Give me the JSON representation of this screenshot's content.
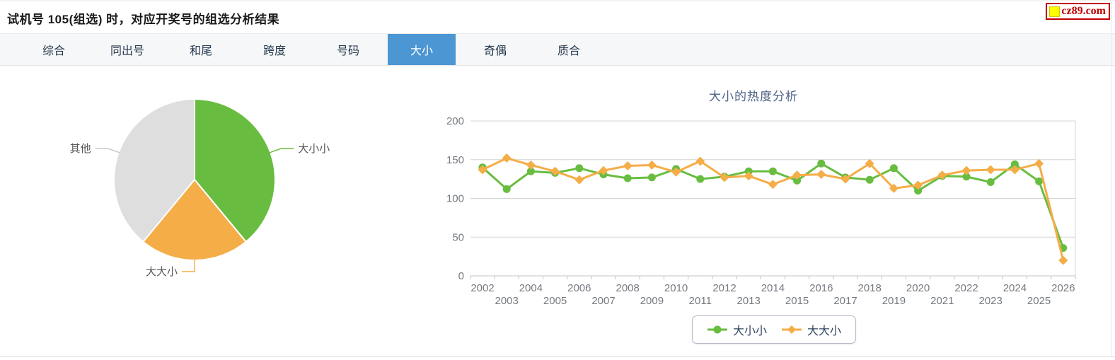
{
  "page": {
    "title": "试机号 105(组选) 时，对应开奖号的组选分析结果",
    "logo_text": "cz89.com"
  },
  "tabs": {
    "items": [
      {
        "id": "zonghe",
        "label": "综合",
        "active": false
      },
      {
        "id": "tongchuhao",
        "label": "同出号",
        "active": false
      },
      {
        "id": "hewei",
        "label": "和尾",
        "active": false
      },
      {
        "id": "kuadu",
        "label": "跨度",
        "active": false
      },
      {
        "id": "haoma",
        "label": "号码",
        "active": false
      },
      {
        "id": "daxiao",
        "label": "大小",
        "active": true
      },
      {
        "id": "qiou",
        "label": "奇偶",
        "active": false
      },
      {
        "id": "zhihe",
        "label": "质合",
        "active": false
      }
    ]
  },
  "colors": {
    "series_green": "#68bd40",
    "series_orange": "#f5ad48",
    "pie_gray": "#dedede",
    "active_tab_bg": "#4c96d3",
    "grid_line": "#d4d4d4",
    "axis_line": "#c0c0c0",
    "axis_text": "#757a80",
    "logo_red": "#c00000",
    "logo_yellow": "#ffff00"
  },
  "chart_data": [
    {
      "type": "pie",
      "start_angle": "top",
      "direction": "clockwise",
      "slices": [
        {
          "label": "大小小",
          "percent": 39,
          "color": "#68bd40",
          "leader_color": "#68bd40"
        },
        {
          "label": "大大小",
          "percent": 22,
          "color": "#f5ad48",
          "leader_color": "#f5ad48"
        },
        {
          "label": "其他",
          "percent": 39,
          "color": "#dedede",
          "leader_color": "#c9c9c9"
        }
      ]
    },
    {
      "type": "line",
      "title": "大小的热度分析",
      "x": [
        2002,
        2003,
        2004,
        2005,
        2006,
        2007,
        2008,
        2009,
        2010,
        2011,
        2012,
        2013,
        2014,
        2015,
        2016,
        2017,
        2018,
        2019,
        2020,
        2021,
        2022,
        2023,
        2024,
        2025,
        2026
      ],
      "series": [
        {
          "name": "大小小",
          "marker": "circle",
          "color": "#68bd40",
          "values": [
            140,
            112,
            135,
            133,
            139,
            131,
            126,
            127,
            138,
            125,
            128,
            135,
            135,
            123,
            145,
            127,
            124,
            139,
            110,
            129,
            128,
            121,
            144,
            122,
            36
          ]
        },
        {
          "name": "大大小",
          "marker": "diamond",
          "color": "#f5ad48",
          "values": [
            137,
            152,
            143,
            135,
            124,
            136,
            142,
            143,
            134,
            148,
            127,
            129,
            118,
            130,
            131,
            125,
            145,
            113,
            117,
            130,
            136,
            137,
            137,
            145,
            20
          ]
        }
      ],
      "ylim": [
        0,
        200
      ],
      "yticks": [
        0,
        50,
        100,
        150,
        200
      ],
      "grid": true,
      "legend_position": "bottom",
      "x_label_stagger": true
    }
  ]
}
